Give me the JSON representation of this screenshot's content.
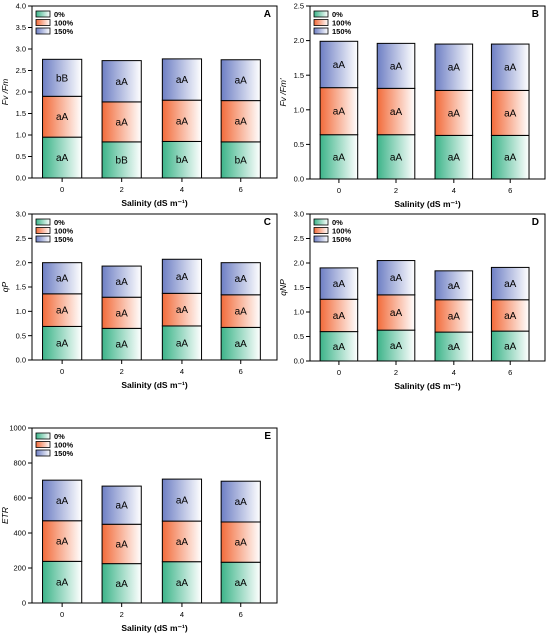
{
  "legend_labels": [
    "0%",
    "100%",
    "150%"
  ],
  "colors": {
    "s0": "#3cb489",
    "s100": "#f26b3a",
    "s150": "#6e7fc4",
    "light": "#ffffff",
    "axis": "#000000"
  },
  "chart_data": [
    {
      "type": "bar",
      "panel_label": "A",
      "categories": [
        "0",
        "2",
        "4",
        "6"
      ],
      "series": [
        {
          "name": "0%",
          "values": [
            0.95,
            0.84,
            0.85,
            0.84
          ]
        },
        {
          "name": "100%",
          "values": [
            0.95,
            0.93,
            0.96,
            0.96
          ]
        },
        {
          "name": "150%",
          "values": [
            0.86,
            0.96,
            0.96,
            0.95
          ]
        }
      ],
      "segment_labels": [
        [
          "aA",
          "aA",
          "bB"
        ],
        [
          "bB",
          "aA",
          "aA"
        ],
        [
          "bA",
          "aA",
          "aA"
        ],
        [
          "bA",
          "aA",
          "aA"
        ]
      ],
      "xlabel": "Salinity (dS m⁻¹)",
      "ylabel": "Fv /Fm",
      "ylim": [
        0,
        4.0
      ],
      "yticks": [
        "0.0",
        "0.5",
        "1.0",
        "1.5",
        "2.0",
        "2.5",
        "3.0",
        "3.5",
        "4.0"
      ],
      "grid": false,
      "legend": "top-left"
    },
    {
      "type": "bar",
      "panel_label": "B",
      "categories": [
        "0",
        "2",
        "4",
        "6"
      ],
      "series": [
        {
          "name": "0%",
          "values": [
            0.64,
            0.64,
            0.63,
            0.63
          ]
        },
        {
          "name": "100%",
          "values": [
            0.68,
            0.67,
            0.65,
            0.65
          ]
        },
        {
          "name": "150%",
          "values": [
            0.67,
            0.65,
            0.67,
            0.67
          ]
        }
      ],
      "segment_labels": [
        [
          "aA",
          "aA",
          "aA"
        ],
        [
          "aA",
          "aA",
          "aA"
        ],
        [
          "aA",
          "aA",
          "aA"
        ],
        [
          "aA",
          "aA",
          "aA"
        ]
      ],
      "xlabel": "Salinity (dS m⁻¹)",
      "ylabel": "Fv /Fm'",
      "ylim": [
        0,
        2.5
      ],
      "yticks": [
        "0.0",
        "0.5",
        "1.0",
        "1.5",
        "2.0",
        "2.5"
      ],
      "grid": false,
      "legend": "top-left"
    },
    {
      "type": "bar",
      "panel_label": "C",
      "categories": [
        "0",
        "2",
        "4",
        "6"
      ],
      "series": [
        {
          "name": "0%",
          "values": [
            0.69,
            0.65,
            0.7,
            0.67
          ]
        },
        {
          "name": "100%",
          "values": [
            0.67,
            0.64,
            0.67,
            0.67
          ]
        },
        {
          "name": "150%",
          "values": [
            0.64,
            0.64,
            0.7,
            0.66
          ]
        }
      ],
      "segment_labels": [
        [
          "aA",
          "aA",
          "aA"
        ],
        [
          "aA",
          "aA",
          "aA"
        ],
        [
          "aA",
          "aA",
          "aA"
        ],
        [
          "aA",
          "aA",
          "aA"
        ]
      ],
      "xlabel": "Salinity (dS m⁻¹)",
      "ylabel": "qP",
      "ylim": [
        0,
        3.0
      ],
      "yticks": [
        "0.0",
        "0.5",
        "1.0",
        "1.5",
        "2.0",
        "2.5",
        "3.0"
      ],
      "grid": false,
      "legend": "top-left"
    },
    {
      "type": "bar",
      "panel_label": "D",
      "categories": [
        "0",
        "2",
        "4",
        "6"
      ],
      "series": [
        {
          "name": "0%",
          "values": [
            0.6,
            0.63,
            0.59,
            0.61
          ]
        },
        {
          "name": "100%",
          "values": [
            0.66,
            0.72,
            0.66,
            0.64
          ]
        },
        {
          "name": "150%",
          "values": [
            0.64,
            0.7,
            0.59,
            0.66
          ]
        }
      ],
      "segment_labels": [
        [
          "aA",
          "aA",
          "aA"
        ],
        [
          "aA",
          "aA",
          "aA"
        ],
        [
          "aA",
          "aA",
          "aA"
        ],
        [
          "aA",
          "aA",
          "aA"
        ]
      ],
      "xlabel": "Salinity (dS m⁻¹)",
      "ylabel": "qNP",
      "ylim": [
        0,
        3.0
      ],
      "yticks": [
        "0.0",
        "0.5",
        "1.0",
        "1.5",
        "2.0",
        "2.5",
        "3.0"
      ],
      "grid": false,
      "legend": "top-left"
    },
    {
      "type": "bar",
      "panel_label": "E",
      "categories": [
        "0",
        "2",
        "4",
        "6"
      ],
      "series": [
        {
          "name": "0%",
          "values": [
            238,
            225,
            236,
            233
          ]
        },
        {
          "name": "100%",
          "values": [
            232,
            225,
            232,
            230
          ]
        },
        {
          "name": "150%",
          "values": [
            232,
            218,
            240,
            233
          ]
        }
      ],
      "segment_labels": [
        [
          "aA",
          "aA",
          "aA"
        ],
        [
          "aA",
          "aA",
          "aA"
        ],
        [
          "aA",
          "aA",
          "aA"
        ],
        [
          "aA",
          "aA",
          "aA"
        ]
      ],
      "xlabel": "Salinity (dS m⁻¹)",
      "ylabel": "ETR",
      "ylim": [
        0,
        1000
      ],
      "yticks": [
        "0",
        "200",
        "400",
        "600",
        "800",
        "1000"
      ],
      "grid": false,
      "legend": "top-left"
    }
  ]
}
